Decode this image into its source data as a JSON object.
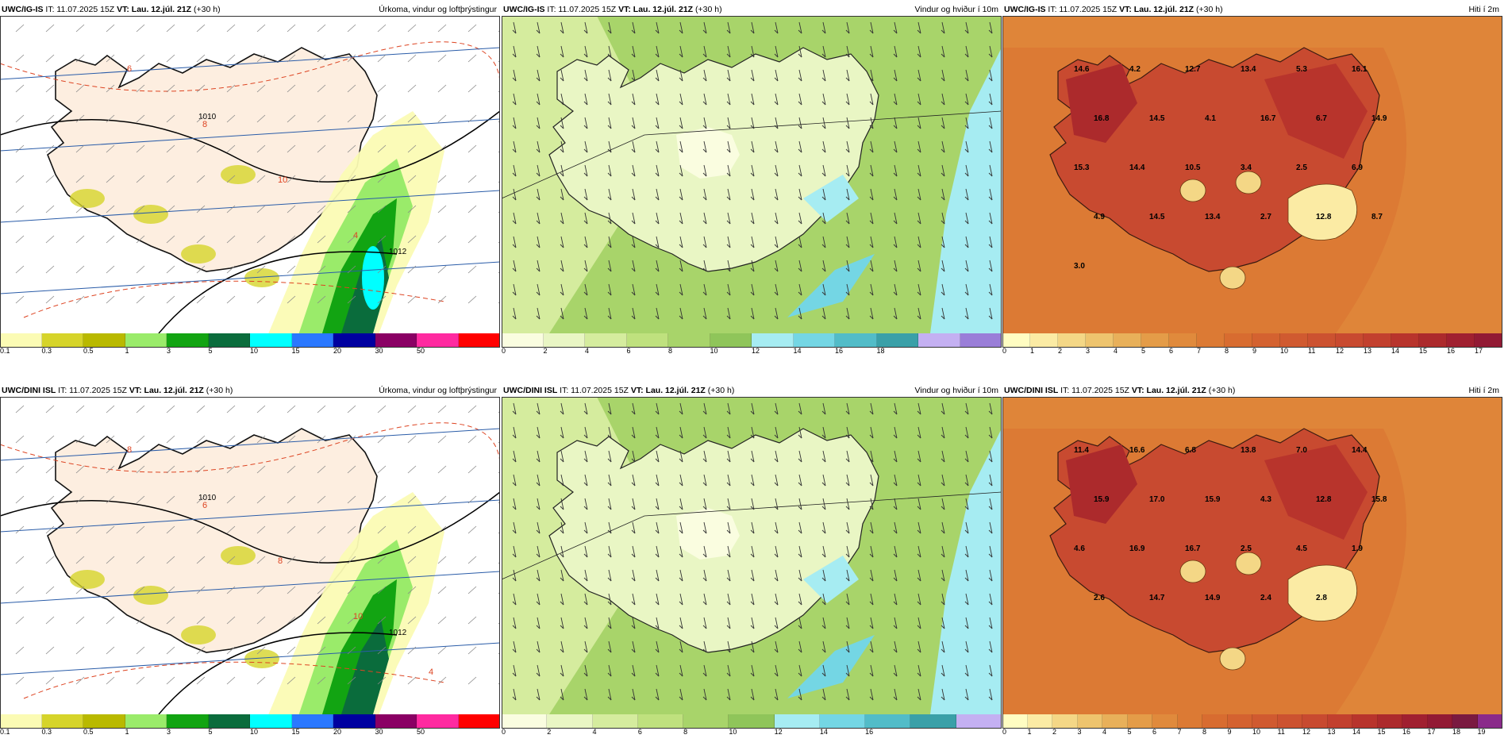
{
  "panels": [
    {
      "model": "UWC/IG-IS",
      "run": "IT: 11.07.2025 15Z",
      "vt": "VT: Lau. 12.júl. 21Z",
      "lead": "(+30 h)",
      "product": "Úrkoma, vindur og loftþrýstingur",
      "type": "precip",
      "ticks": [
        "0.1",
        "0.3",
        "0.5",
        "1",
        "3",
        "5",
        "10",
        "15",
        "20",
        "30",
        "50"
      ],
      "colors": [
        "#fbfbb4",
        "#d6d42a",
        "#b9b900",
        "#9aeb6a",
        "#12a412",
        "#0a6c3c",
        "#00ffff",
        "#2a78ff",
        "#0000a0",
        "#8a0064",
        "#ff2aa0",
        "#ff0000"
      ],
      "isobars": [
        "1010",
        "1012"
      ],
      "temps": [
        "6",
        "8",
        "10",
        "4"
      ]
    },
    {
      "model": "UWC/IG-IS",
      "run": "IT: 11.07.2025 15Z",
      "vt": "VT: Lau. 12.júl. 21Z",
      "lead": "(+30 h)",
      "product": "Vindur og hviður í 10m",
      "type": "wind",
      "ticks": [
        "0",
        "2",
        "4",
        "6",
        "8",
        "10",
        "12",
        "14",
        "16",
        "18"
      ],
      "colors": [
        "#fafde0",
        "#e9f6c4",
        "#d5ec9e",
        "#bfe17e",
        "#a8d46a",
        "#8fc55a",
        "#a6ecf2",
        "#74d6e4",
        "#52bcc8",
        "#3aa0a8",
        "#c4b0f2",
        "#9a7ed8"
      ]
    },
    {
      "model": "UWC/IG-IS",
      "run": "IT: 11.07.2025 15Z",
      "vt": "VT: Lau. 12.júl. 21Z",
      "lead": "(+30 h)",
      "product": "Hiti í 2m",
      "type": "temp",
      "ticks": [
        "0",
        "1",
        "2",
        "3",
        "4",
        "5",
        "6",
        "7",
        "8",
        "9",
        "10",
        "11",
        "12",
        "13",
        "14",
        "15",
        "16",
        "17"
      ],
      "colors": [
        "#fffdc2",
        "#fbeba4",
        "#f4d786",
        "#eec46e",
        "#e8b05a",
        "#e49c48",
        "#e08a3c",
        "#dc7a34",
        "#d86c30",
        "#d46230",
        "#d05a30",
        "#cc5230",
        "#c84a30",
        "#c2402e",
        "#b8342c",
        "#ac2a2c",
        "#a02030",
        "#921a34"
      ],
      "labels": [
        "14.6",
        "4.2",
        "12.7",
        "13.4",
        "5.3",
        "16.1",
        "16.8",
        "14.5",
        "4.1",
        "16.7",
        "6.7",
        "14.9",
        "15.3",
        "14.4",
        "10.5",
        "3.4",
        "2.5",
        "6.9",
        "4.9",
        "14.5",
        "13.4",
        "2.7",
        "12.8",
        "8.7",
        "3.0"
      ]
    },
    {
      "model": "UWC/DINI ISL",
      "run": "IT: 11.07.2025 15Z",
      "vt": "VT: Lau. 12.júl. 21Z",
      "lead": "(+30 h)",
      "product": "Úrkoma, vindur og loftþrýstingur",
      "type": "precip",
      "ticks": [
        "0.1",
        "0.3",
        "0.5",
        "1",
        "3",
        "5",
        "10",
        "15",
        "20",
        "30",
        "50"
      ],
      "colors": [
        "#fbfbb4",
        "#d6d42a",
        "#b9b900",
        "#9aeb6a",
        "#12a412",
        "#0a6c3c",
        "#00ffff",
        "#2a78ff",
        "#0000a0",
        "#8a0064",
        "#ff2aa0",
        "#ff0000"
      ],
      "isobars": [
        "1010",
        "1012"
      ],
      "temps": [
        "8",
        "6",
        "8",
        "10",
        "4"
      ]
    },
    {
      "model": "UWC/DINI ISL",
      "run": "IT: 11.07.2025 15Z",
      "vt": "VT: Lau. 12.júl. 21Z",
      "lead": "(+30 h)",
      "product": "Vindur og hviður í 10m",
      "type": "wind",
      "ticks": [
        "0",
        "2",
        "4",
        "6",
        "8",
        "10",
        "12",
        "14",
        "16"
      ],
      "colors": [
        "#fafde0",
        "#e9f6c4",
        "#d5ec9e",
        "#bfe17e",
        "#a8d46a",
        "#8fc55a",
        "#a6ecf2",
        "#74d6e4",
        "#52bcc8",
        "#3aa0a8",
        "#c4b0f2"
      ]
    },
    {
      "model": "UWC/DINI ISL",
      "run": "IT: 11.07.2025 15Z",
      "vt": "VT: Lau. 12.júl. 21Z",
      "lead": "(+30 h)",
      "product": "Hiti í 2m",
      "type": "temp",
      "ticks": [
        "0",
        "1",
        "2",
        "3",
        "4",
        "5",
        "6",
        "7",
        "8",
        "9",
        "10",
        "11",
        "12",
        "13",
        "14",
        "15",
        "16",
        "17",
        "18",
        "19"
      ],
      "colors": [
        "#fffdc2",
        "#fbeba4",
        "#f4d786",
        "#eec46e",
        "#e8b05a",
        "#e49c48",
        "#e08a3c",
        "#dc7a34",
        "#d86c30",
        "#d46230",
        "#d05a30",
        "#cc5230",
        "#c84a30",
        "#c2402e",
        "#b8342c",
        "#ac2a2c",
        "#a02030",
        "#921a34",
        "#7a1a40",
        "#8a2a8a"
      ],
      "labels": [
        "11.4",
        "16.6",
        "6.8",
        "13.8",
        "7.0",
        "14.4",
        "15.9",
        "17.0",
        "15.9",
        "4.3",
        "12.8",
        "15.8",
        "4.6",
        "16.9",
        "16.7",
        "2.5",
        "4.5",
        "1.9",
        "2.6",
        "14.7",
        "14.9",
        "2.4",
        "2.8"
      ]
    }
  ]
}
